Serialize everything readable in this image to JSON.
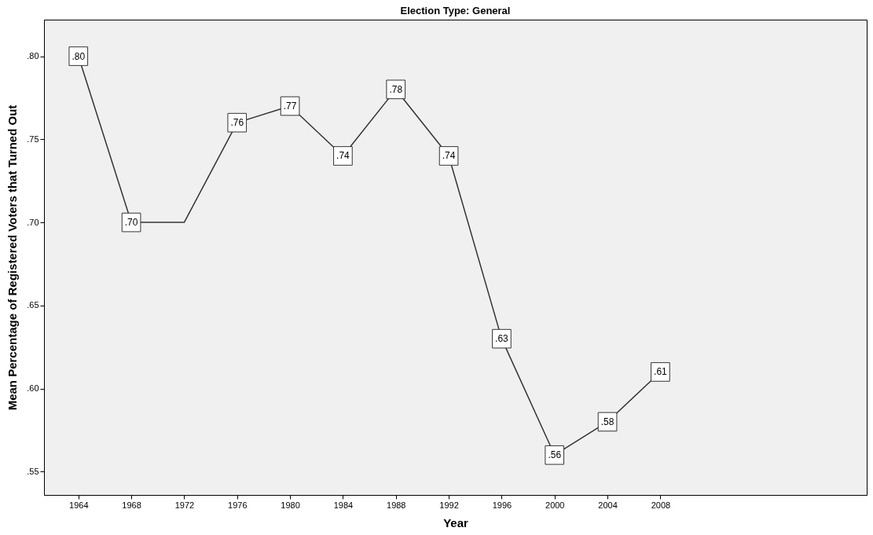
{
  "chart_data": {
    "type": "line",
    "title": "Election Type: General",
    "xlabel": "Year",
    "ylabel": "Mean Percentage of Registered Voters that Turned Out",
    "x": [
      1964,
      1968,
      1972,
      1976,
      1980,
      1984,
      1988,
      1992,
      1996,
      2000,
      2004,
      2008
    ],
    "series": [
      {
        "color": "#333333",
        "values": [
          0.8,
          0.7,
          0.7,
          0.76,
          0.77,
          0.74,
          0.78,
          0.74,
          0.63,
          0.56,
          0.58,
          0.61
        ],
        "value_labels": [
          ".80",
          ".70",
          null,
          ".76",
          ".77",
          ".74",
          ".78",
          ".74",
          ".63",
          ".56",
          ".58",
          ".61"
        ]
      }
    ],
    "xlim": [
      1961.4,
      2023.6
    ],
    "xticks": [
      1964,
      1968,
      1972,
      1976,
      1980,
      1984,
      1988,
      1992,
      1996,
      2000,
      2004,
      2008
    ],
    "ylim": [
      0.536,
      0.822
    ],
    "yticks": [
      {
        "value": 0.55,
        "label": ".55"
      },
      {
        "value": 0.6,
        "label": ".60"
      },
      {
        "value": 0.65,
        "label": ".65"
      },
      {
        "value": 0.7,
        "label": ".70"
      },
      {
        "value": 0.75,
        "label": ".75"
      },
      {
        "value": 0.8,
        "label": ".80"
      }
    ],
    "grid": false,
    "marker": "square",
    "line_style": "solid"
  }
}
